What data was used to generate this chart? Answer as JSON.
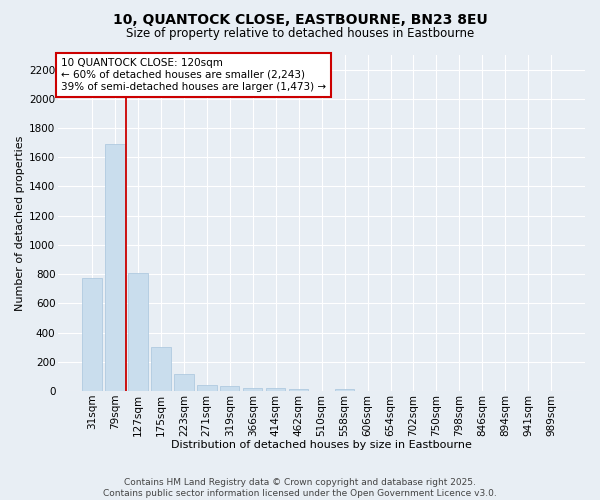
{
  "title": "10, QUANTOCK CLOSE, EASTBOURNE, BN23 8EU",
  "subtitle": "Size of property relative to detached houses in Eastbourne",
  "xlabel": "Distribution of detached houses by size in Eastbourne",
  "ylabel": "Number of detached properties",
  "categories": [
    "31sqm",
    "79sqm",
    "127sqm",
    "175sqm",
    "223sqm",
    "271sqm",
    "319sqm",
    "366sqm",
    "414sqm",
    "462sqm",
    "510sqm",
    "558sqm",
    "606sqm",
    "654sqm",
    "702sqm",
    "750sqm",
    "798sqm",
    "846sqm",
    "894sqm",
    "941sqm",
    "989sqm"
  ],
  "values": [
    775,
    1690,
    805,
    300,
    115,
    42,
    34,
    22,
    18,
    10,
    0,
    10,
    0,
    0,
    0,
    0,
    0,
    0,
    0,
    0,
    0
  ],
  "bar_color": "#c9dded",
  "bar_edgecolor": "#a8c4dc",
  "vline_color": "#cc0000",
  "annotation_text": "10 QUANTOCK CLOSE: 120sqm\n← 60% of detached houses are smaller (2,243)\n39% of semi-detached houses are larger (1,473) →",
  "annotation_box_edgecolor": "#cc0000",
  "annotation_facecolor": "white",
  "ylim": [
    0,
    2300
  ],
  "yticks": [
    0,
    200,
    400,
    600,
    800,
    1000,
    1200,
    1400,
    1600,
    1800,
    2000,
    2200
  ],
  "background_color": "#e8eef4",
  "grid_color": "white",
  "footer": "Contains HM Land Registry data © Crown copyright and database right 2025.\nContains public sector information licensed under the Open Government Licence v3.0.",
  "title_fontsize": 10,
  "subtitle_fontsize": 8.5,
  "xlabel_fontsize": 8,
  "ylabel_fontsize": 8,
  "tick_fontsize": 7.5,
  "annotation_fontsize": 7.5,
  "footer_fontsize": 6.5
}
